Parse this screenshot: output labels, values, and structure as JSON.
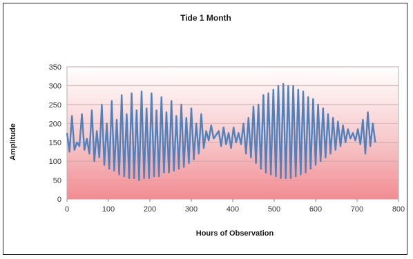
{
  "chart_data": {
    "type": "line",
    "title": "Tide  1 Month",
    "xlabel": "Hours of Observation",
    "ylabel": "Amplitude",
    "xlim": [
      0,
      800
    ],
    "ylim": [
      0,
      350
    ],
    "xticks": [
      0,
      100,
      200,
      300,
      400,
      500,
      600,
      700,
      800
    ],
    "yticks": [
      0,
      50,
      100,
      150,
      200,
      250,
      300,
      350
    ],
    "grid": true,
    "series": [
      {
        "color": "#4f81bd",
        "x": [
          0,
          6,
          12,
          18,
          24,
          30,
          36,
          42,
          48,
          54,
          60,
          66,
          72,
          78,
          84,
          90,
          96,
          102,
          108,
          114,
          120,
          126,
          132,
          138,
          144,
          150,
          156,
          162,
          168,
          174,
          180,
          186,
          192,
          198,
          204,
          210,
          216,
          222,
          228,
          234,
          240,
          246,
          252,
          258,
          264,
          270,
          276,
          282,
          288,
          294,
          300,
          306,
          312,
          318,
          324,
          330,
          336,
          342,
          348,
          354,
          360,
          366,
          372,
          378,
          384,
          390,
          396,
          402,
          408,
          414,
          420,
          426,
          432,
          438,
          444,
          450,
          456,
          462,
          468,
          474,
          480,
          486,
          492,
          498,
          504,
          510,
          516,
          522,
          528,
          534,
          540,
          546,
          552,
          558,
          564,
          570,
          576,
          582,
          588,
          594,
          600,
          606,
          612,
          618,
          624,
          630,
          636,
          642,
          648,
          654,
          660,
          666,
          672,
          678,
          684,
          690,
          696,
          702,
          708,
          714,
          720,
          726,
          732,
          738,
          744
        ],
        "values": [
          175,
          125,
          220,
          130,
          150,
          140,
          225,
          130,
          160,
          120,
          235,
          100,
          180,
          110,
          250,
          90,
          200,
          80,
          260,
          75,
          210,
          65,
          275,
          60,
          225,
          55,
          280,
          55,
          235,
          50,
          285,
          55,
          240,
          55,
          280,
          60,
          235,
          60,
          270,
          70,
          230,
          70,
          260,
          75,
          220,
          80,
          250,
          85,
          215,
          95,
          240,
          105,
          200,
          120,
          225,
          135,
          180,
          155,
          195,
          160,
          170,
          180,
          140,
          190,
          145,
          175,
          135,
          190,
          150,
          175,
          145,
          200,
          120,
          215,
          110,
          245,
          95,
          250,
          80,
          275,
          70,
          280,
          65,
          290,
          60,
          300,
          55,
          305,
          55,
          300,
          55,
          300,
          60,
          290,
          65,
          285,
          70,
          270,
          80,
          265,
          90,
          250,
          100,
          240,
          110,
          225,
          120,
          215,
          130,
          205,
          140,
          195,
          150,
          185,
          160,
          175,
          155,
          185,
          145,
          210,
          120,
          230,
          140,
          200,
          150
        ]
      }
    ]
  }
}
